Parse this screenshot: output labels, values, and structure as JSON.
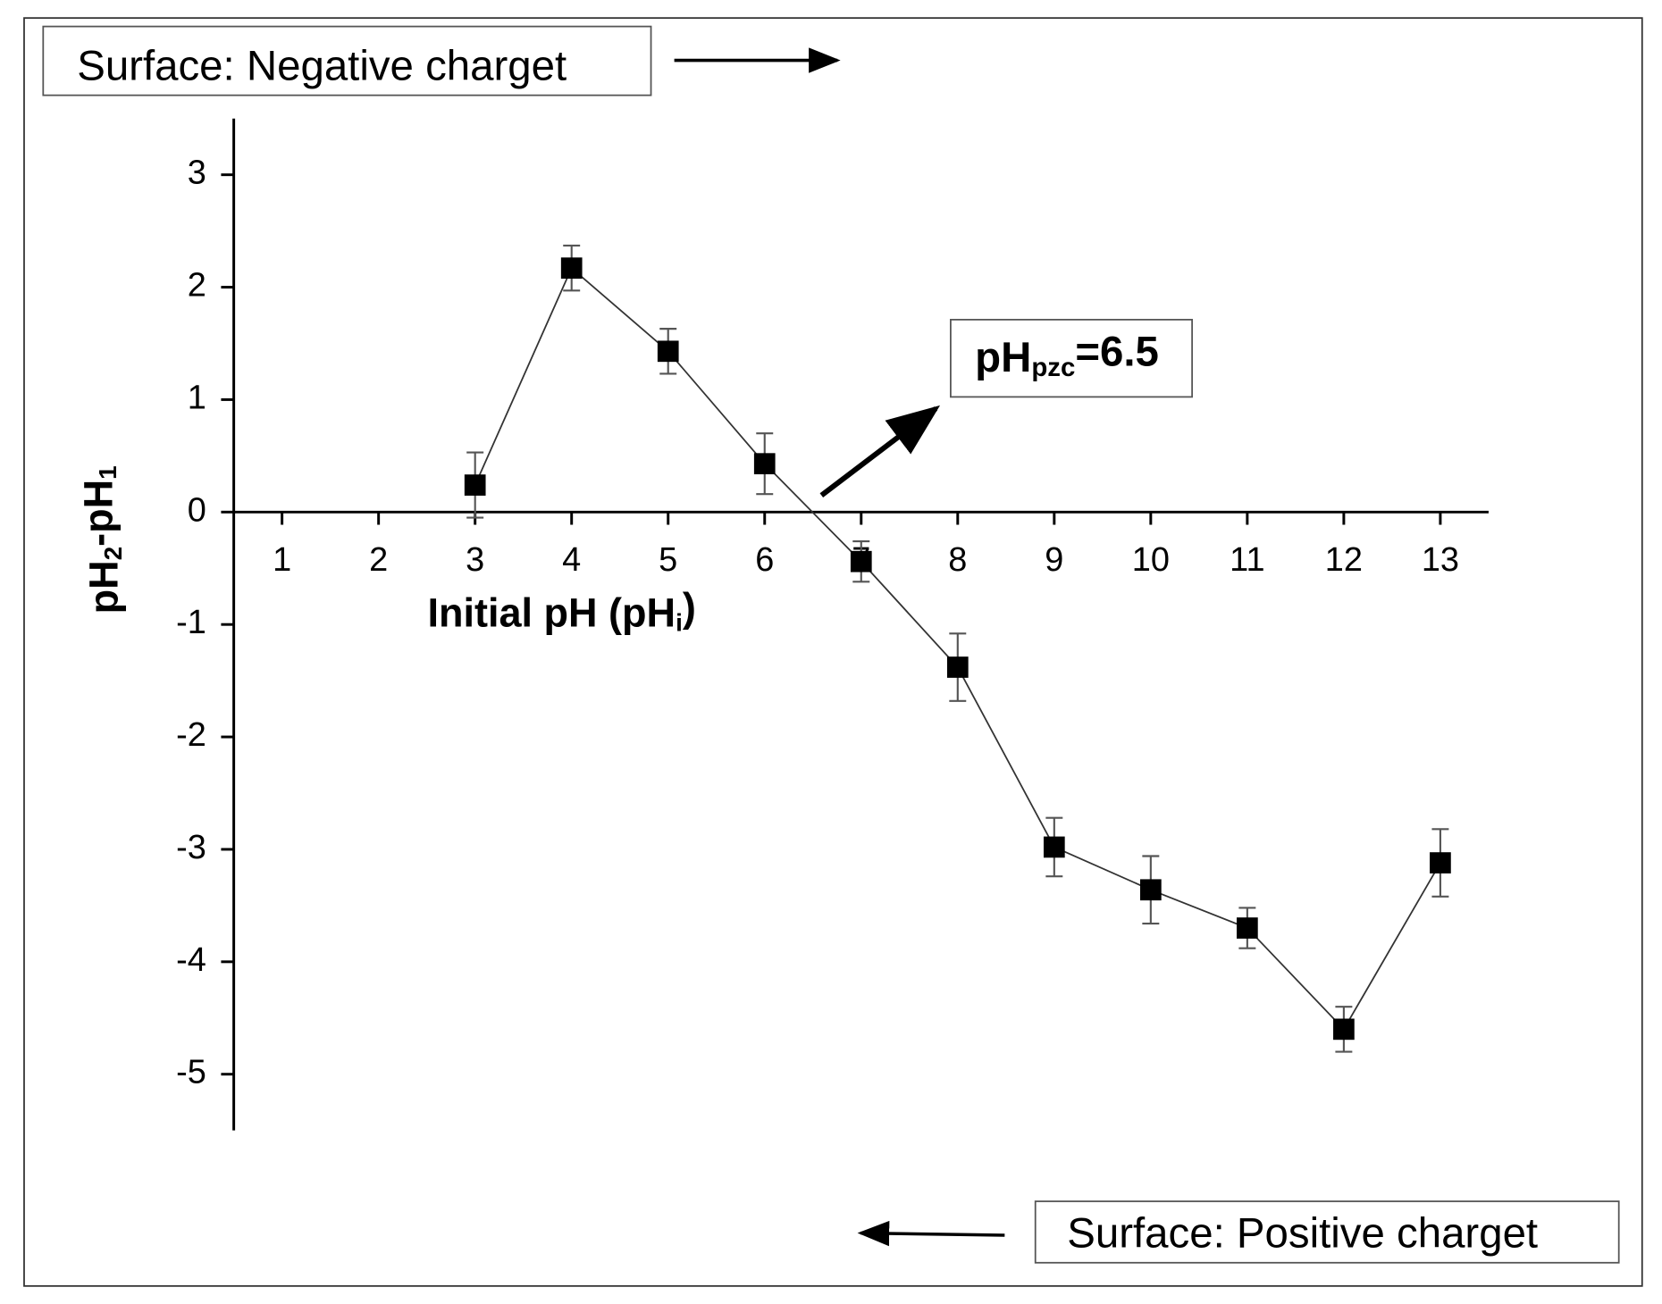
{
  "chart_data": {
    "type": "line",
    "xlabel": [
      {
        "text": "Initial pH (pH"
      },
      {
        "text": "i",
        "sub": true
      },
      {
        "text": ")"
      }
    ],
    "ylabel": [
      {
        "text": "pH"
      },
      {
        "text": "2",
        "sub": true
      },
      {
        "text": "-pH"
      },
      {
        "text": "1",
        "sub": true
      }
    ],
    "annotations": {
      "negative": "Surface: Negative charget",
      "positive": "Surface: Positive charget",
      "pzc": [
        {
          "text": "pH"
        },
        {
          "text": "pzc",
          "sub": true
        },
        {
          "text": "=6.5"
        }
      ]
    },
    "x": [
      3,
      4,
      5,
      6,
      7,
      8,
      9,
      10,
      11,
      12,
      13
    ],
    "values": [
      0.24,
      2.17,
      1.43,
      0.43,
      -0.44,
      -1.38,
      -2.98,
      -3.36,
      -3.7,
      -4.6,
      -3.12
    ],
    "errors": [
      0.29,
      0.2,
      0.2,
      0.27,
      0.18,
      0.3,
      0.26,
      0.3,
      0.18,
      0.2,
      0.3
    ],
    "color": "#000000",
    "xlim": [
      0.5,
      13.5
    ],
    "ylim": [
      -5.5,
      3.5
    ],
    "xticks": [
      1,
      2,
      3,
      4,
      5,
      6,
      7,
      8,
      9,
      10,
      11,
      12,
      13
    ],
    "yticks": [
      -5,
      -4,
      -3,
      -2,
      -1,
      0,
      1,
      2,
      3
    ]
  }
}
